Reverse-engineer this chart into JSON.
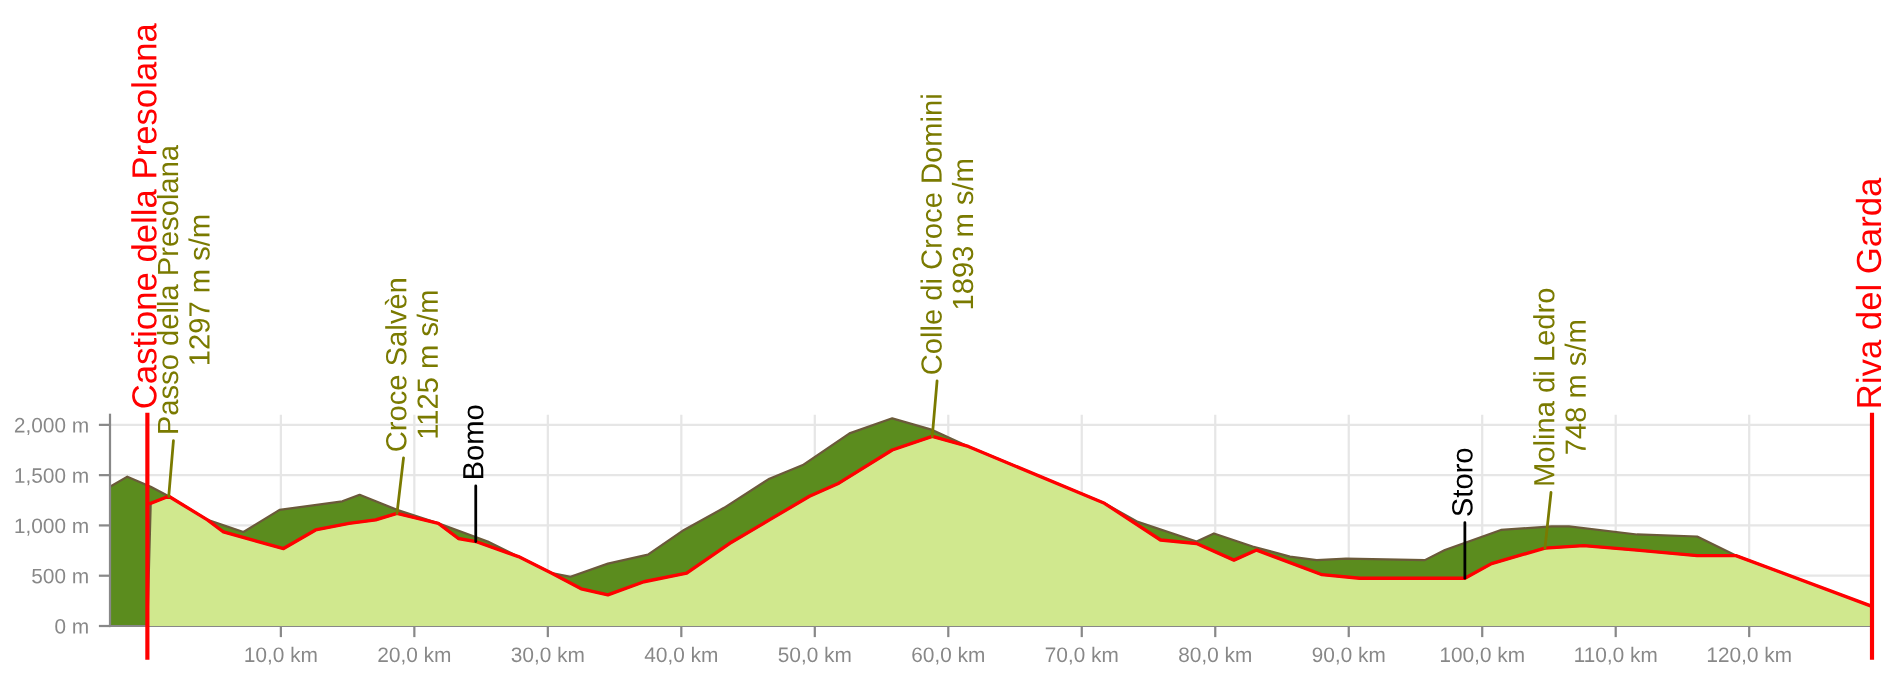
{
  "chart_data": {
    "type": "area",
    "series": [
      {
        "color": "#5b8c1e",
        "x": [
          -2.8,
          -1.5,
          0.25,
          1.6,
          4.5,
          7.2,
          9.9,
          12.4,
          14.6,
          15.9,
          18.7,
          21.8,
          25.5,
          30.3,
          31.7,
          34.5,
          37.5,
          40.2,
          43.2,
          46.6,
          49.1,
          52.6,
          55.8,
          58.8,
          61.5,
          71.7,
          74.2,
          78.6,
          79.9,
          82.8,
          85.6,
          87.6,
          89.8,
          95.7,
          97.2,
          101.4,
          105.2,
          106.5,
          111.6,
          116.1,
          119.0,
          129.2
        ],
        "values": [
          1385,
          1485,
          1385,
          1290,
          1055,
          935,
          1155,
          1200,
          1240,
          1305,
          1155,
          1020,
          840,
          525,
          490,
          620,
          710,
          955,
          1175,
          1465,
          1600,
          1915,
          2065,
          1950,
          1785,
          1220,
          1035,
          840,
          920,
          790,
          690,
          655,
          670,
          655,
          755,
          955,
          990,
          990,
          910,
          890,
          700,
          195
        ]
      },
      {
        "color": "#d0e88e",
        "x": [
          0,
          0.25,
          1.6,
          4.5,
          5.7,
          10.2,
          12.6,
          15.1,
          17.1,
          18.7,
          21.8,
          23.3,
          24.6,
          27.8,
          30.3,
          32.5,
          34.5,
          37.2,
          40.4,
          43.6,
          46.6,
          49.6,
          51.8,
          55.8,
          58.8,
          61.5,
          71.7,
          75.9,
          78.6,
          81.4,
          83.1,
          88.0,
          90.8,
          98.7,
          100.7,
          104.7,
          107.6,
          111.6,
          116.1,
          119.0,
          129.2
        ],
        "values": [
          0,
          1220,
          1290,
          1055,
          935,
          770,
          955,
          1020,
          1055,
          1120,
          1020,
          870,
          840,
          690,
          525,
          370,
          310,
          440,
          525,
          820,
          1055,
          1290,
          1420,
          1750,
          1885,
          1785,
          1220,
          855,
          820,
          655,
          755,
          510,
          475,
          475,
          620,
          775,
          800,
          755,
          700,
          700,
          195
        ]
      },
      {
        "type": "line",
        "color": "#ff0000",
        "x": [
          0.25,
          1.6,
          4.5,
          5.7,
          10.2,
          12.6,
          15.1,
          17.1,
          18.7,
          21.8,
          23.3,
          24.6,
          27.8,
          30.3,
          32.5,
          34.5,
          37.2,
          40.4,
          43.6,
          46.6,
          49.6,
          51.8,
          55.8,
          58.8,
          61.5,
          71.7,
          75.9,
          78.6,
          81.4,
          83.1,
          88.0,
          90.8,
          98.7,
          100.7,
          104.7,
          107.6,
          111.6,
          116.1,
          119.0,
          129.2
        ],
        "values": [
          1220,
          1290,
          1055,
          935,
          770,
          955,
          1020,
          1055,
          1120,
          1020,
          870,
          840,
          690,
          525,
          370,
          310,
          440,
          525,
          820,
          1055,
          1290,
          1420,
          1750,
          1885,
          1785,
          1220,
          855,
          820,
          655,
          755,
          510,
          475,
          475,
          620,
          775,
          800,
          755,
          700,
          700,
          195
        ]
      }
    ],
    "xlim": [
      -2.8,
      129.2
    ],
    "xticks": [
      {
        "value": 10,
        "label": "10,0 km"
      },
      {
        "value": 20,
        "label": "20,0 km"
      },
      {
        "value": 30,
        "label": "30,0 km"
      },
      {
        "value": 40,
        "label": "40,0 km"
      },
      {
        "value": 50,
        "label": "50,0 km"
      },
      {
        "value": 60,
        "label": "60,0 km"
      },
      {
        "value": 70,
        "label": "70,0 km"
      },
      {
        "value": 80,
        "label": "80,0 km"
      },
      {
        "value": 90,
        "label": "90,0 km"
      },
      {
        "value": 100,
        "label": "100,0 km"
      },
      {
        "value": 110,
        "label": "110,0 km"
      },
      {
        "value": 120,
        "label": "120,0 km"
      }
    ],
    "ylim": [
      0,
      2100
    ],
    "yticks": [
      {
        "value": 0,
        "label": "0 m"
      },
      {
        "value": 500,
        "label": "500 m"
      },
      {
        "value": 1000,
        "label": "1,000 m"
      },
      {
        "value": 1500,
        "label": "1,500 m"
      },
      {
        "value": 2000,
        "label": "2,000 m"
      }
    ],
    "grid": true,
    "ref_lines": [
      {
        "axis": "x",
        "value": 0,
        "label": "Castione della Presolana",
        "color": "#ff0000"
      },
      {
        "axis": "x",
        "value": 129.2,
        "label": "Riva del Garda",
        "color": "#ff0000"
      }
    ],
    "annotations": [
      {
        "text": "Passo della Presolana\n1297 m s/m",
        "x": 1.6,
        "y": 1290
      },
      {
        "text": "Croce Salvèn\n1125 m s/m",
        "x": 18.7,
        "y": 1120
      },
      {
        "text": "Bomo",
        "x": 24.6,
        "y": 840
      },
      {
        "text": "Colle di Croce Domini\n1893 m s/m",
        "x": 58.8,
        "y": 1885
      },
      {
        "text": "Storo",
        "x": 98.7,
        "y": 475
      },
      {
        "text": "Molina di Ledro\n748 m s/m",
        "x": 104.7,
        "y": 775
      }
    ]
  }
}
